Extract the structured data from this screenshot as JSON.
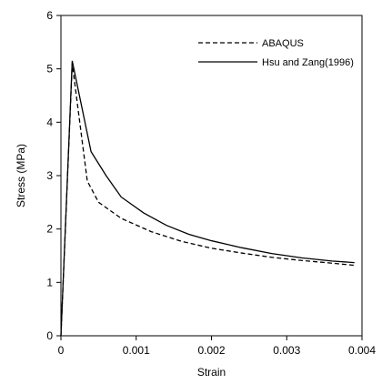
{
  "chart_data": {
    "type": "line",
    "xlabel": "Strain",
    "ylabel": "Stress (MPa)",
    "xlim": [
      0,
      0.004
    ],
    "ylim": [
      0,
      6
    ],
    "xticks": [
      0,
      0.001,
      0.002,
      0.003,
      0.004
    ],
    "xtick_labels": [
      "0",
      "0.001",
      "0.002",
      "0.003",
      "0.004"
    ],
    "yticks": [
      0,
      1,
      2,
      3,
      4,
      5,
      6
    ],
    "ytick_labels": [
      "0",
      "1",
      "2",
      "3",
      "4",
      "5",
      "6"
    ],
    "grid": false,
    "legend_position": "top-right",
    "series": [
      {
        "name": "ABAQUS",
        "style": "dashed",
        "color": "#000000",
        "x": [
          0,
          0.00015,
          0.00035,
          0.0005,
          0.0008,
          0.0012,
          0.0016,
          0.002,
          0.0024,
          0.0028,
          0.0032,
          0.0036,
          0.0039
        ],
        "y": [
          0,
          5.1,
          2.9,
          2.5,
          2.2,
          1.95,
          1.77,
          1.64,
          1.55,
          1.47,
          1.41,
          1.36,
          1.32
        ]
      },
      {
        "name": "Hsu and Zang(1996)",
        "style": "solid",
        "color": "#000000",
        "x": [
          0,
          0.00015,
          0.0004,
          0.0006,
          0.0008,
          0.0011,
          0.0014,
          0.0017,
          0.002,
          0.0024,
          0.0028,
          0.0032,
          0.0036,
          0.0039
        ],
        "y": [
          0,
          5.15,
          3.45,
          3.0,
          2.6,
          2.3,
          2.07,
          1.9,
          1.78,
          1.65,
          1.54,
          1.46,
          1.4,
          1.37
        ]
      }
    ]
  }
}
